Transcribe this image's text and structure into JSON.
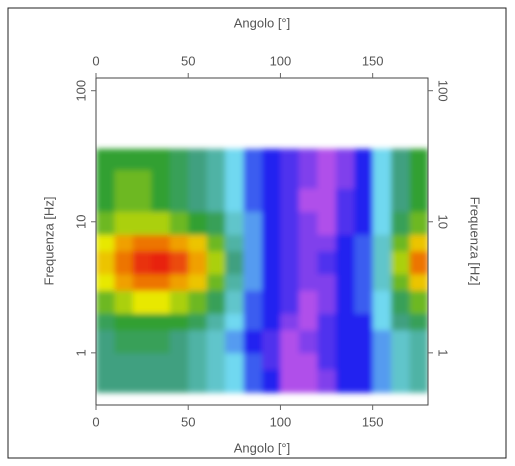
{
  "chart_data": {
    "type": "heatmap",
    "xlabel": "Angolo [°]",
    "ylabel": "Frequenza [Hz]",
    "xlim": [
      0,
      180
    ],
    "xticks": [
      0,
      50,
      100,
      150
    ],
    "ylim": [
      0.4,
      125
    ],
    "yticks": [
      1,
      10,
      100
    ],
    "ylog": true,
    "x_bins": [
      0,
      10,
      20,
      30,
      40,
      50,
      60,
      70,
      80,
      90,
      100,
      110,
      120,
      130,
      140,
      150,
      160,
      170,
      180
    ],
    "y_bins": [
      0.5,
      0.75,
      1,
      1.5,
      2,
      3,
      4,
      6,
      8,
      12,
      18,
      25,
      36
    ],
    "z": [
      [
        5,
        5,
        5,
        5,
        5,
        4.5,
        4,
        3.5,
        2.5,
        2,
        0.5,
        0.5,
        1,
        2,
        2,
        3,
        4,
        4.5
      ],
      [
        5,
        5,
        5,
        5,
        5,
        4.5,
        4,
        3.5,
        2.5,
        1.5,
        0.5,
        0.5,
        1.5,
        2,
        2,
        3,
        4,
        4.5
      ],
      [
        5,
        5.5,
        5.5,
        5.5,
        5,
        4.5,
        4,
        3,
        2,
        1.5,
        0.5,
        1,
        1.5,
        2,
        2,
        3,
        4,
        4.5
      ],
      [
        5.5,
        6,
        6,
        6,
        6,
        5.5,
        4.5,
        3.5,
        2.5,
        2,
        1,
        0.5,
        1.5,
        2,
        2,
        3.5,
        5,
        5.5
      ],
      [
        6.5,
        7,
        7.5,
        7.5,
        7,
        6.5,
        5.5,
        4,
        2.5,
        2,
        1.5,
        0.5,
        1,
        2,
        2.5,
        3.5,
        5.5,
        6.5
      ],
      [
        7.5,
        8.5,
        9,
        9,
        8.5,
        8,
        6.5,
        4.5,
        3,
        2,
        1.5,
        1,
        1,
        2,
        2.5,
        4,
        6.5,
        8
      ],
      [
        8,
        9,
        9.8,
        10,
        9.5,
        8.5,
        7,
        5,
        3,
        2,
        1.5,
        1,
        1.5,
        2,
        2.5,
        4,
        7,
        9
      ],
      [
        7.5,
        8.5,
        9,
        9,
        8.5,
        8,
        6.5,
        4.5,
        3,
        2,
        1.5,
        1,
        1,
        2,
        2.5,
        4,
        6.5,
        8
      ],
      [
        6.5,
        7,
        7,
        7,
        6.5,
        6,
        5.5,
        4,
        3,
        2,
        1.5,
        1,
        0.5,
        1.5,
        2,
        3.5,
        5.5,
        6.5
      ],
      [
        6,
        6.5,
        6.5,
        6,
        5.5,
        5,
        4.5,
        3.5,
        2.5,
        2,
        1.5,
        0.5,
        0.5,
        1.5,
        2,
        3.5,
        5,
        6
      ],
      [
        6,
        6.5,
        6.5,
        6,
        5.5,
        5,
        4.5,
        3.5,
        2.5,
        2,
        1.5,
        1,
        0.5,
        1,
        2,
        3.5,
        5,
        6
      ],
      [
        6,
        6,
        6,
        6,
        5.5,
        5,
        4.5,
        3.5,
        2.5,
        2,
        1.5,
        1,
        0.5,
        1,
        2,
        3.5,
        5,
        6
      ]
    ],
    "colorscale": [
      [
        0,
        "#e060e8"
      ],
      [
        2,
        "#2020f0"
      ],
      [
        3.5,
        "#70d8f0"
      ],
      [
        5,
        "#40a080"
      ],
      [
        6,
        "#30a030"
      ],
      [
        7.5,
        "#e8e800"
      ],
      [
        8.5,
        "#f0a000"
      ],
      [
        10,
        "#e82010"
      ]
    ]
  }
}
